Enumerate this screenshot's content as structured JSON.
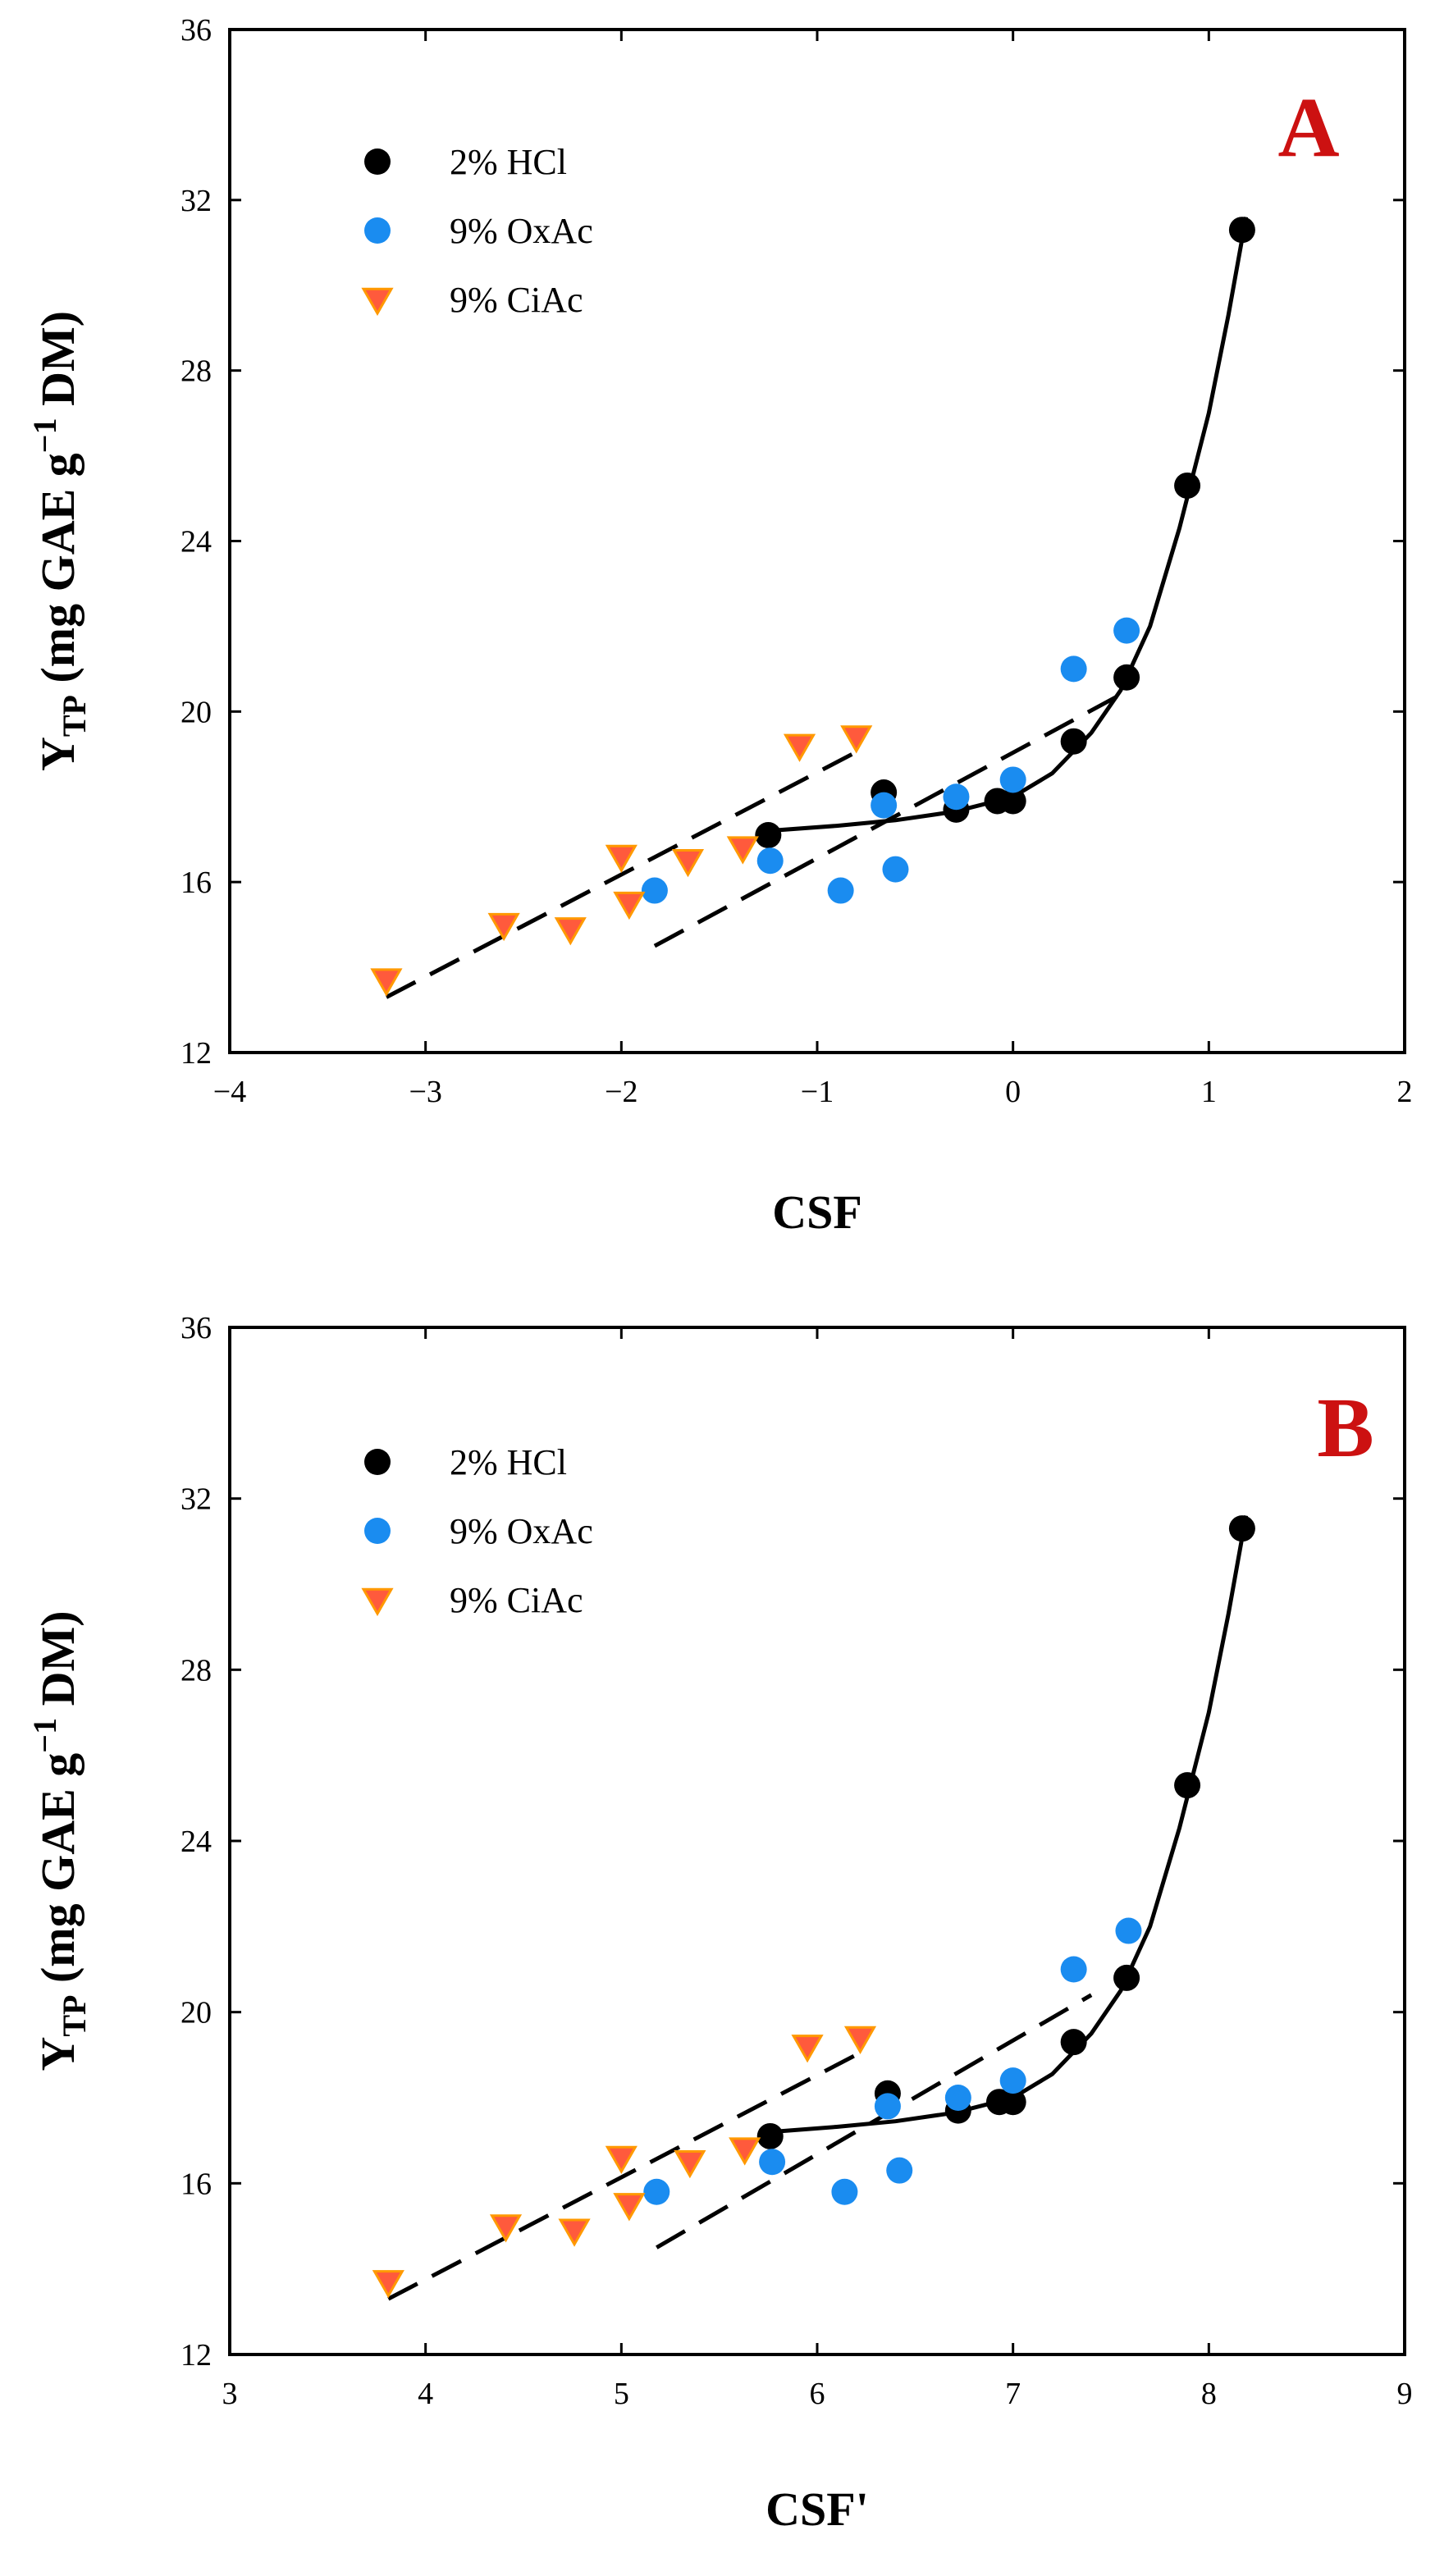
{
  "colors": {
    "hcl": "#000000",
    "oxac": "#1a8cf0",
    "ciac_fill": "#ff5a3c",
    "ciac_stroke": "#ff9900",
    "panel_letter": "#cc1111",
    "axis": "#000000"
  },
  "chart_data": [
    {
      "type": "scatter",
      "panel_label": "A",
      "xlabel": "CSF",
      "ylabel_main": "Y",
      "ylabel_sub": "TP",
      "ylabel_units": " (mg GAE g",
      "ylabel_sup": "−1",
      "ylabel_end": " DM)",
      "xlim": [
        -4,
        2
      ],
      "ylim": [
        12,
        36
      ],
      "xticks": [
        -4,
        -3,
        -2,
        -1,
        0,
        1,
        2
      ],
      "xtick_labels": [
        "−4",
        "−3",
        "−2",
        "−1",
        "0",
        "1",
        "2"
      ],
      "yticks": [
        12,
        16,
        20,
        24,
        28,
        32,
        36
      ],
      "ytick_labels": [
        "12",
        "16",
        "20",
        "24",
        "28",
        "32",
        "36"
      ],
      "legend_position": "top-left",
      "series": [
        {
          "name": "2% HCl",
          "marker": "circle",
          "points": [
            [
              -1.25,
              17.1
            ],
            [
              -0.66,
              18.1
            ],
            [
              -0.29,
              17.7
            ],
            [
              -0.08,
              17.9
            ],
            [
              0.0,
              17.9
            ],
            [
              0.31,
              19.3
            ],
            [
              0.58,
              20.8
            ],
            [
              0.89,
              25.3
            ],
            [
              1.17,
              31.3
            ]
          ]
        },
        {
          "name": "9% OxAc",
          "marker": "circle",
          "points": [
            [
              -1.83,
              15.8
            ],
            [
              -1.24,
              16.5
            ],
            [
              -0.88,
              15.8
            ],
            [
              -0.66,
              17.8
            ],
            [
              -0.29,
              18.0
            ],
            [
              0.0,
              18.4
            ],
            [
              0.31,
              21.0
            ],
            [
              0.58,
              21.9
            ],
            [
              -0.6,
              16.3
            ]
          ]
        },
        {
          "name": "9% CiAc",
          "marker": "triangle-down",
          "points": [
            [
              -3.2,
              13.7
            ],
            [
              -2.6,
              15.0
            ],
            [
              -2.26,
              14.9
            ],
            [
              -2.0,
              16.6
            ],
            [
              -1.96,
              15.5
            ],
            [
              -1.66,
              16.5
            ],
            [
              -1.38,
              16.8
            ],
            [
              -1.09,
              19.2
            ],
            [
              -0.8,
              19.4
            ]
          ]
        }
      ],
      "fits": [
        {
          "series": "2% HCl",
          "style": "solid",
          "points": [
            [
              -1.25,
              17.2
            ],
            [
              -0.9,
              17.32
            ],
            [
              -0.6,
              17.45
            ],
            [
              -0.3,
              17.65
            ],
            [
              0.0,
              18.0
            ],
            [
              0.2,
              18.55
            ],
            [
              0.4,
              19.5
            ],
            [
              0.55,
              20.5
            ],
            [
              0.7,
              22.0
            ],
            [
              0.85,
              24.3
            ],
            [
              1.0,
              27.0
            ],
            [
              1.1,
              29.3
            ],
            [
              1.19,
              31.6
            ]
          ]
        },
        {
          "series": "9% OxAc",
          "style": "dashed",
          "points": [
            [
              -1.83,
              14.5
            ],
            [
              0.55,
              20.4
            ]
          ]
        },
        {
          "series": "9% CiAc",
          "style": "dashed",
          "points": [
            [
              -3.2,
              13.3
            ],
            [
              -0.78,
              19.1
            ]
          ]
        }
      ]
    },
    {
      "type": "scatter",
      "panel_label": "B",
      "xlabel": "CSF'",
      "ylabel_main": "Y",
      "ylabel_sub": "TP",
      "ylabel_units": " (mg GAE g",
      "ylabel_sup": "−1",
      "ylabel_end": " DM)",
      "xlim": [
        3,
        9
      ],
      "ylim": [
        12,
        36
      ],
      "xticks": [
        3,
        4,
        5,
        6,
        7,
        8,
        9
      ],
      "xtick_labels": [
        "3",
        "4",
        "5",
        "6",
        "7",
        "8",
        "9"
      ],
      "yticks": [
        12,
        16,
        20,
        24,
        28,
        32,
        36
      ],
      "ytick_labels": [
        "12",
        "16",
        "20",
        "24",
        "28",
        "32",
        "36"
      ],
      "legend_position": "top-left",
      "series": [
        {
          "name": "2% HCl",
          "marker": "circle",
          "points": [
            [
              5.76,
              17.1
            ],
            [
              6.36,
              18.1
            ],
            [
              6.72,
              17.7
            ],
            [
              6.93,
              17.9
            ],
            [
              7.0,
              17.9
            ],
            [
              7.31,
              19.3
            ],
            [
              7.58,
              20.8
            ],
            [
              7.89,
              25.3
            ],
            [
              8.17,
              31.3
            ]
          ]
        },
        {
          "name": "9% OxAc",
          "marker": "circle",
          "points": [
            [
              5.18,
              15.8
            ],
            [
              5.77,
              16.5
            ],
            [
              6.14,
              15.8
            ],
            [
              6.36,
              17.8
            ],
            [
              6.72,
              18.0
            ],
            [
              7.0,
              18.4
            ],
            [
              7.31,
              21.0
            ],
            [
              7.59,
              21.9
            ],
            [
              6.42,
              16.3
            ]
          ]
        },
        {
          "name": "9% CiAc",
          "marker": "triangle-down",
          "points": [
            [
              3.81,
              13.7
            ],
            [
              4.41,
              15.0
            ],
            [
              4.76,
              14.9
            ],
            [
              5.0,
              16.6
            ],
            [
              5.04,
              15.5
            ],
            [
              5.35,
              16.5
            ],
            [
              5.63,
              16.8
            ],
            [
              5.95,
              19.2
            ],
            [
              6.22,
              19.4
            ]
          ]
        }
      ],
      "fits": [
        {
          "series": "2% HCl",
          "style": "solid",
          "points": [
            [
              5.76,
              17.2
            ],
            [
              6.1,
              17.32
            ],
            [
              6.4,
              17.45
            ],
            [
              6.7,
              17.65
            ],
            [
              7.0,
              18.0
            ],
            [
              7.2,
              18.55
            ],
            [
              7.4,
              19.5
            ],
            [
              7.55,
              20.5
            ],
            [
              7.7,
              22.0
            ],
            [
              7.85,
              24.3
            ],
            [
              8.0,
              27.0
            ],
            [
              8.1,
              29.3
            ],
            [
              8.19,
              31.6
            ]
          ]
        },
        {
          "series": "9% OxAc",
          "style": "dashed",
          "points": [
            [
              5.18,
              14.5
            ],
            [
              7.4,
              20.4
            ]
          ]
        },
        {
          "series": "9% CiAc",
          "style": "dashed",
          "points": [
            [
              3.81,
              13.3
            ],
            [
              6.24,
              19.1
            ]
          ]
        }
      ]
    }
  ]
}
